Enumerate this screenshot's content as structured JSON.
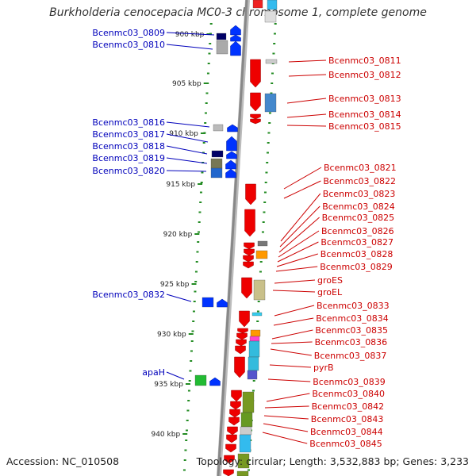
{
  "title": "Burkholderia cenocepacia MC0-3 chromosome 1, complete genome",
  "footer": {
    "accession": "Accession: NC_010508",
    "stats": "Topology: circular; Length: 3,532,883 bp; Genes: 3,233"
  },
  "colors": {
    "backbone": "#888888",
    "tick": "#228b22",
    "left_label": "#0000bb",
    "right_label": "#cc0000",
    "forward_gene": "#0033ff",
    "reverse_gene": "#ee0000"
  },
  "kbp_marks": [
    "900 kbp",
    "905 kbp",
    "910 kbp",
    "915 kbp",
    "920 kbp",
    "925 kbp",
    "930 kbp",
    "935 kbp",
    "940 kbp"
  ],
  "left_genes": [
    "Bcenmc03_0809",
    "Bcenmc03_0810",
    "Bcenmc03_0816",
    "Bcenmc03_0817",
    "Bcenmc03_0818",
    "Bcenmc03_0819",
    "Bcenmc03_0820",
    "Bcenmc03_0832",
    "apaH"
  ],
  "right_genes": [
    "Bcenmc03_0811",
    "Bcenmc03_0812",
    "Bcenmc03_0813",
    "Bcenmc03_0814",
    "Bcenmc03_0815",
    "Bcenmc03_0821",
    "Bcenmc03_0822",
    "Bcenmc03_0823",
    "Bcenmc03_0824",
    "Bcenmc03_0825",
    "Bcenmc03_0826",
    "Bcenmc03_0827",
    "Bcenmc03_0828",
    "Bcenmc03_0829",
    "groES",
    "groEL",
    "Bcenmc03_0833",
    "Bcenmc03_0834",
    "Bcenmc03_0835",
    "Bcenmc03_0836",
    "Bcenmc03_0837",
    "pyrB",
    "Bcenmc03_0839",
    "Bcenmc03_0840",
    "Bcenmc03_0842",
    "Bcenmc03_0843",
    "Bcenmc03_0844",
    "Bcenmc03_0845"
  ]
}
